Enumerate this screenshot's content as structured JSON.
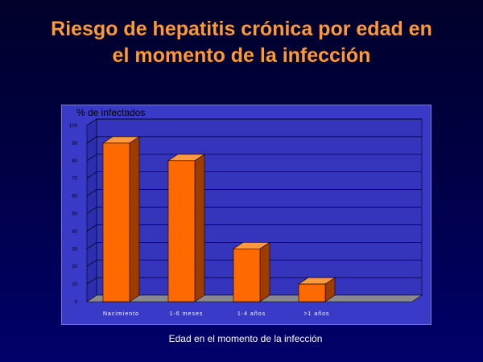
{
  "slide": {
    "title_line1": "Riesgo de hepatitis crónica por edad en",
    "title_line2": "el momento de la infección"
  },
  "chart_data": {
    "type": "bar",
    "ylabel": "% de infectados",
    "xlabel": "Edad en el momento de la infección",
    "categories": [
      "Nacimiento",
      "1-6 meses",
      "1-4 años",
      ">1 años"
    ],
    "values": [
      90,
      80,
      30,
      10
    ],
    "ylim": [
      0,
      100
    ],
    "yticks": [
      "0",
      "10",
      "20",
      "30",
      "40",
      "50",
      "60",
      "70",
      "80",
      "90",
      "100"
    ],
    "grid": true,
    "style": "3d-bars",
    "colors": {
      "bar_front": "#ff6a00",
      "bar_top": "#ff9a40",
      "bar_side": "#9e3c00",
      "wall": "#3434bc",
      "panel": "#3a3ac8",
      "title": "#ff9933"
    }
  }
}
